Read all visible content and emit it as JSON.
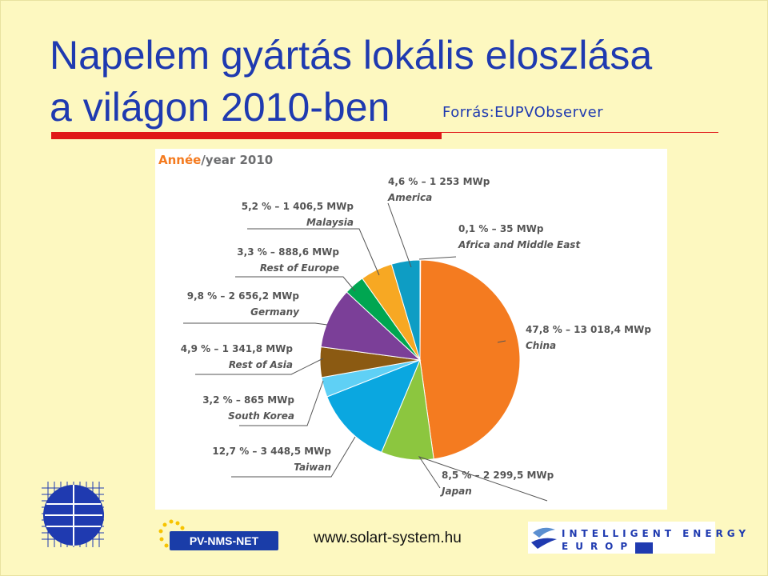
{
  "slide": {
    "title_line1": "Napelem gyártás lokális eloszlása",
    "title_line2": "a világon 2010-ben",
    "source": "Forrás:EUPVObserver",
    "url": "www.solart-system.hu",
    "logo_pvnms": "PV-NMS-NET",
    "logo_ie_line1": "INTELLIGENT ENERGY",
    "logo_ie_line2": "EUROPE"
  },
  "chart_data": {
    "type": "pie",
    "title_part1": "Année",
    "title_part2": "/year 2010",
    "units": "MWp",
    "slices": [
      {
        "name": "China",
        "percent_label": "47,8 %",
        "value_label": "13 018,4 MWp",
        "percent": 47.8,
        "value": 13018.4,
        "color": "#f47b20"
      },
      {
        "name": "Japan",
        "percent_label": "8,5 %",
        "value_label": "2 299,5 MWp",
        "percent": 8.5,
        "value": 2299.5,
        "color": "#8cc63f"
      },
      {
        "name": "Taiwan",
        "percent_label": "12,7 %",
        "value_label": "3 448,5 MWp",
        "percent": 12.7,
        "value": 3448.5,
        "color": "#0aa7e0"
      },
      {
        "name": "South Korea",
        "percent_label": "3,2 %",
        "value_label": "865 MWp",
        "percent": 3.2,
        "value": 865,
        "color": "#5fd0f5"
      },
      {
        "name": "Rest of Asia",
        "percent_label": "4,9 %",
        "value_label": "1 341,8 MWp",
        "percent": 4.9,
        "value": 1341.8,
        "color": "#8b5a12"
      },
      {
        "name": "Germany",
        "percent_label": "9,8 %",
        "value_label": "2 656,2 MWp",
        "percent": 9.8,
        "value": 2656.2,
        "color": "#7b3f98"
      },
      {
        "name": "Rest of Europe",
        "percent_label": "3,3 %",
        "value_label": "888,6 MWp",
        "percent": 3.3,
        "value": 888.6,
        "color": "#00a651"
      },
      {
        "name": "Malaysia",
        "percent_label": "5,2 %",
        "value_label": "1 406,5 MWp",
        "percent": 5.2,
        "value": 1406.5,
        "color": "#f7a823"
      },
      {
        "name": "America",
        "percent_label": "4,6 %",
        "value_label": "1 253 MWp",
        "percent": 4.6,
        "value": 1253,
        "color": "#0e9dc4"
      },
      {
        "name": "Africa and Middle East",
        "percent_label": "0,1 %",
        "value_label": "35 MWp",
        "percent": 0.1,
        "value": 35,
        "color": "#c8c8c8"
      }
    ]
  }
}
